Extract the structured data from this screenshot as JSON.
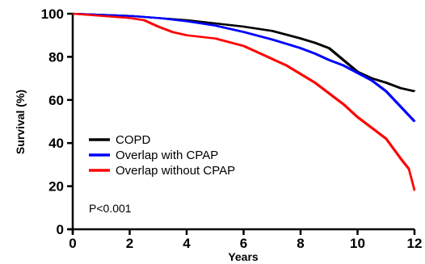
{
  "chart_data": {
    "type": "line",
    "step": true,
    "title": "",
    "xlabel": "Years",
    "ylabel": "Survival (%)",
    "xlim": [
      0,
      12
    ],
    "ylim": [
      0,
      100
    ],
    "xticks": [
      0,
      2,
      4,
      6,
      8,
      10,
      12
    ],
    "yticks": [
      0,
      20,
      40,
      60,
      80,
      100
    ],
    "grid": false,
    "legend_position": "lower-left",
    "annotation": "P<0.001",
    "series": [
      {
        "name": "COPD",
        "color": "#000000",
        "x": [
          0,
          1,
          2,
          3,
          4,
          5,
          6,
          7,
          8,
          8.5,
          9,
          9.5,
          10,
          10.5,
          11,
          11.5,
          12
        ],
        "y": [
          100,
          99.5,
          99,
          98,
          97,
          95.5,
          94,
          92,
          88.5,
          86.5,
          84,
          78.5,
          73,
          70,
          68,
          65.5,
          64
        ]
      },
      {
        "name": "Overlap with CPAP",
        "color": "#0000ff",
        "x": [
          0,
          1,
          2,
          3,
          4,
          5,
          6,
          7,
          8,
          8.5,
          9,
          9.5,
          10,
          10.5,
          11,
          11.5,
          12
        ],
        "y": [
          100,
          99.5,
          99,
          98,
          96.5,
          94.5,
          91.5,
          88,
          84,
          81.5,
          78.5,
          76,
          72.5,
          69,
          64,
          57,
          50
        ]
      },
      {
        "name": "Overlap without CPAP",
        "color": "#ff0000",
        "x": [
          0,
          1,
          2,
          2.5,
          3,
          3.5,
          4,
          5,
          6,
          7,
          7.5,
          8,
          8.5,
          9,
          9.5,
          10,
          10.5,
          11,
          11.5,
          11.8,
          12
        ],
        "y": [
          100,
          99,
          98,
          97,
          94,
          91.5,
          90,
          88.5,
          85,
          79,
          76,
          72,
          68,
          63,
          58,
          52,
          47,
          42,
          33,
          28,
          18
        ]
      }
    ]
  }
}
